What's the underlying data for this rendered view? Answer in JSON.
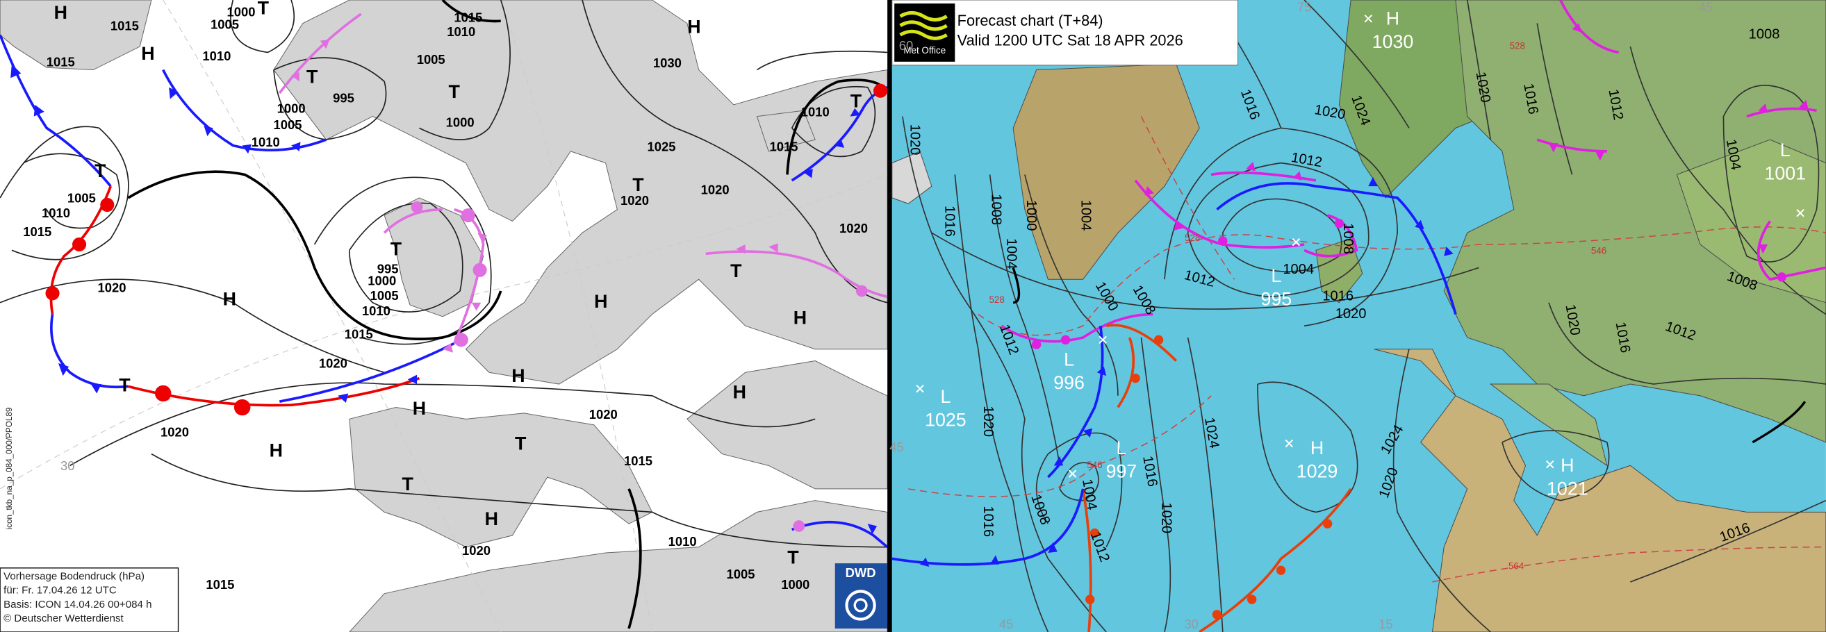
{
  "left_map": {
    "systems": [
      "H",
      "H",
      "T",
      "T",
      "T",
      "T",
      "T",
      "H",
      "T",
      "H",
      "H",
      "H",
      "T",
      "T",
      "H",
      "H",
      "H",
      "T",
      "T",
      "H",
      "H",
      "T",
      "T"
    ],
    "isobar_labels": [
      "1015",
      "1000",
      "1005",
      "1010",
      "1015",
      "1015",
      "1010",
      "1005",
      "995",
      "1000",
      "1005",
      "1010",
      "1000",
      "1030",
      "1025",
      "1020",
      "1020",
      "1010",
      "1015",
      "1020",
      "1005",
      "1010",
      "1015",
      "1020",
      "995",
      "1000",
      "1005",
      "1010",
      "1015",
      "1020",
      "1020",
      "1015",
      "1020",
      "1020",
      "1010",
      "1005",
      "1000",
      "1015"
    ],
    "latitude_labels": [
      "30"
    ],
    "side_text": "icon_tkb_na_p_084_000/PPOL89",
    "caption": [
      "Vorhersage Bodendruck (hPa)",
      "für:  Fr. 17.04.26  12 UTC",
      "Basis: ICON  14.04.26 00+084 h",
      "© Deutscher Wetterdienst"
    ],
    "logo": "DWD"
  },
  "right_map": {
    "header": {
      "logo": "Met Office",
      "title": "Forecast chart (T+84)",
      "valid": "Valid 1200 UTC Sat 18 APR 2026"
    },
    "systems": [
      {
        "type": "H",
        "pressure": "1030"
      },
      {
        "type": "L",
        "pressure": "1001"
      },
      {
        "type": "L",
        "pressure": "995"
      },
      {
        "type": "L",
        "pressure": "996"
      },
      {
        "type": "L",
        "pressure": "1025"
      },
      {
        "type": "L",
        "pressure": "997"
      },
      {
        "type": "H",
        "pressure": "1029"
      },
      {
        "type": "H",
        "pressure": "1021"
      }
    ],
    "isobar_labels": [
      "1020",
      "1016",
      "1008",
      "1000",
      "1004",
      "1004",
      "1012",
      "1020",
      "1016",
      "1008",
      "1004",
      "1012",
      "1016",
      "1020",
      "1024",
      "1008",
      "1000",
      "1012",
      "1004",
      "1016",
      "1020",
      "1008",
      "1012",
      "1016",
      "1020",
      "1024",
      "1020",
      "1016",
      "1012",
      "1008",
      "1004",
      "1008",
      "1012",
      "1016",
      "1020",
      "1024",
      "1020",
      "1016"
    ],
    "latitude_labels": [
      "75",
      "45",
      "60",
      "30",
      "15",
      "45",
      "45"
    ],
    "thickness_labels": [
      "528",
      "528",
      "546",
      "528",
      "546",
      "564"
    ]
  }
}
